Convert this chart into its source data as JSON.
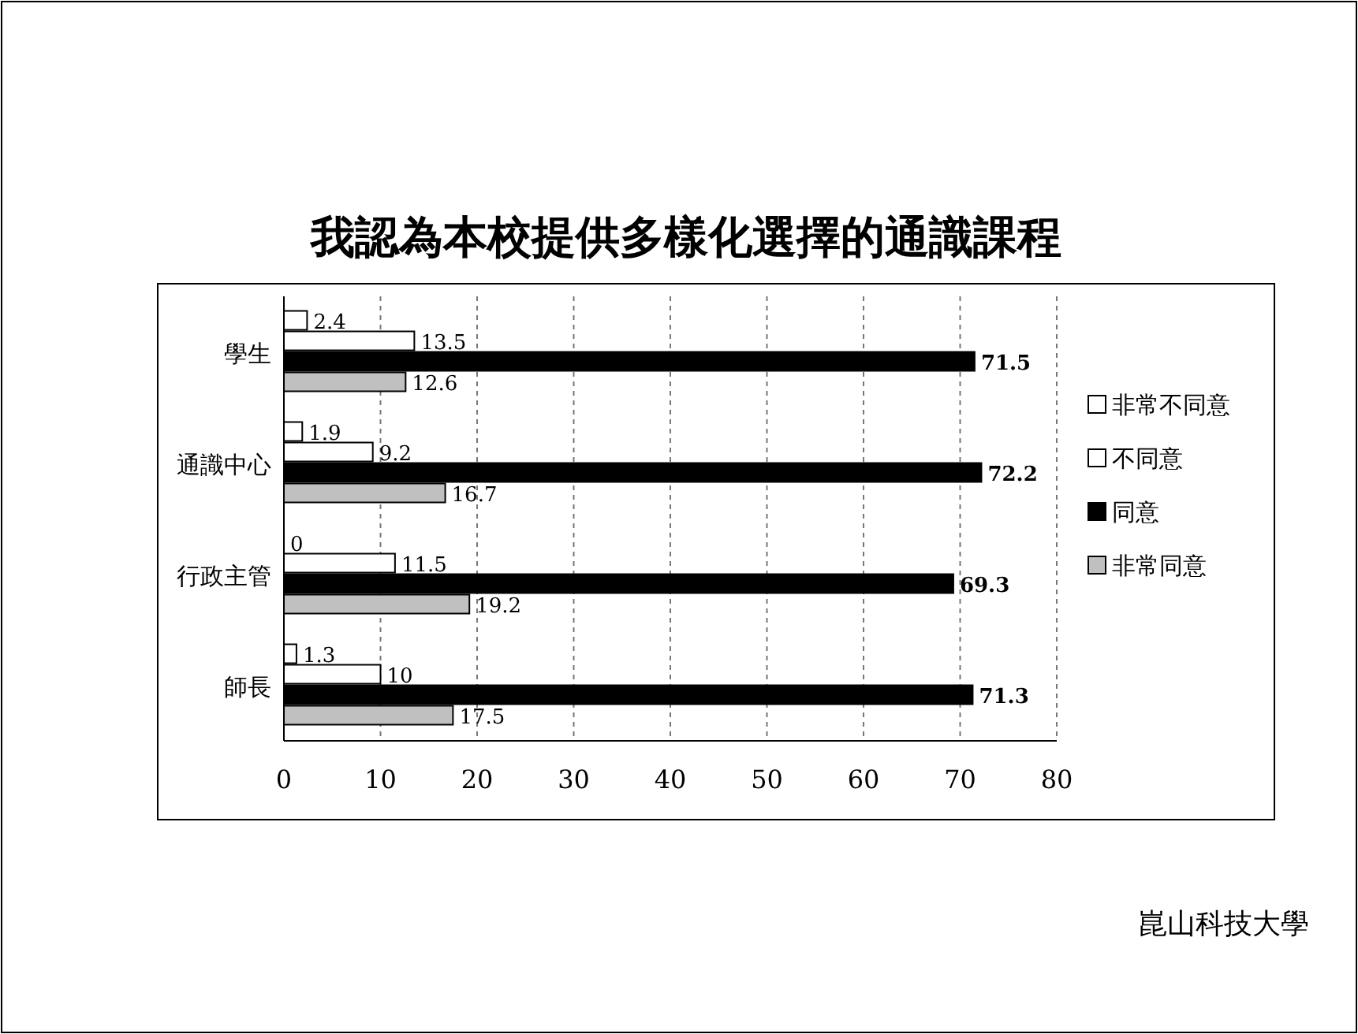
{
  "chart_data": {
    "type": "bar",
    "orientation": "horizontal",
    "title": "我認為本校提供多樣化選擇的通識課程",
    "categories": [
      "學生",
      "通識中心",
      "行政主管",
      "師長"
    ],
    "series": [
      {
        "name": "非常不同意",
        "color": "#ffffff",
        "values": [
          2.4,
          1.9,
          0,
          1.3
        ]
      },
      {
        "name": "不同意",
        "color": "#ffffff",
        "values": [
          13.5,
          9.2,
          11.5,
          10
        ]
      },
      {
        "name": "同意",
        "color": "#000000",
        "values": [
          71.5,
          72.2,
          69.3,
          71.3
        ]
      },
      {
        "name": "非常同意",
        "color": "#c0c0c0",
        "values": [
          12.6,
          16.7,
          19.2,
          17.5
        ]
      }
    ],
    "xlim": [
      0,
      80
    ],
    "xticks": [
      0,
      10,
      20,
      30,
      40,
      50,
      60,
      70,
      80
    ],
    "grid": "x",
    "legend": "right",
    "data_labels": true,
    "annotations": [
      "崑山科技大學"
    ]
  }
}
